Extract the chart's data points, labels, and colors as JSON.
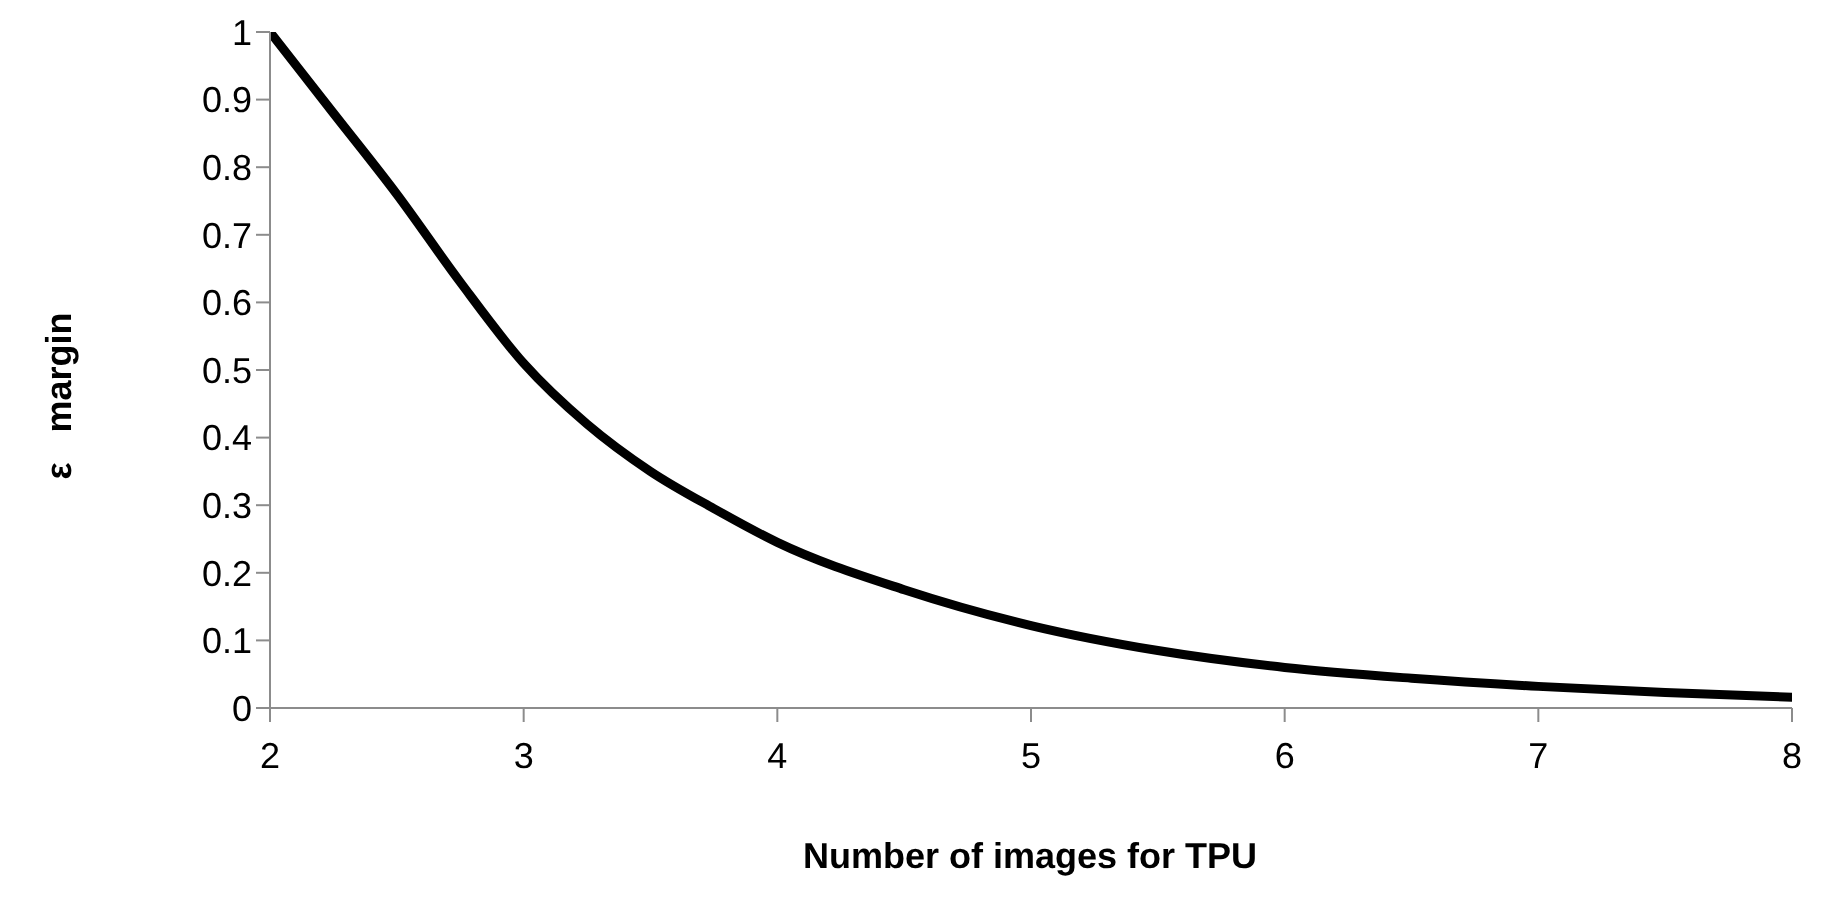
{
  "chart_data": {
    "type": "line",
    "xlabel": "Number of images for TPU",
    "ylabel": "ε   margin",
    "x": [
      2,
      2.25,
      2.5,
      2.75,
      3,
      3.25,
      3.5,
      3.75,
      4,
      4.5,
      5,
      5.5,
      6,
      6.5,
      7,
      7.5,
      8
    ],
    "series": [
      {
        "color": "#000000",
        "values": [
          1,
          0.88,
          0.76,
          0.63,
          0.51,
          0.42,
          0.35,
          0.295,
          0.245,
          0.175,
          0.122,
          0.085,
          0.06,
          0.044,
          0.032,
          0.023,
          0.016
        ]
      }
    ],
    "xlim": [
      2,
      8
    ],
    "xticks": [
      2,
      3,
      4,
      5,
      6,
      7,
      8
    ],
    "ylim": [
      0,
      1
    ],
    "yticks": [
      0,
      0.1,
      0.2,
      0.3,
      0.4,
      0.5,
      0.6,
      0.7,
      0.8,
      0.9,
      1
    ],
    "grid": false,
    "legend": false,
    "marker": "none",
    "line_style": "solid"
  }
}
